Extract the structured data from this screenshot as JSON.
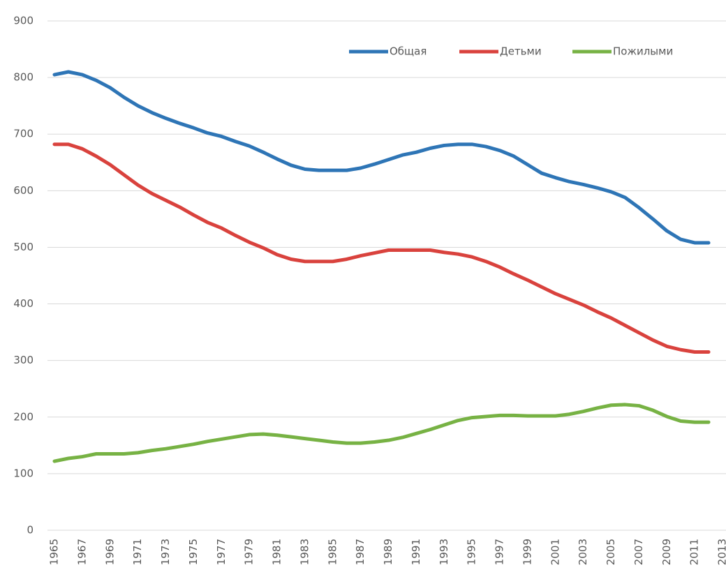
{
  "chart_data": {
    "type": "line",
    "x": [
      1965,
      1966,
      1967,
      1968,
      1969,
      1970,
      1971,
      1972,
      1973,
      1974,
      1975,
      1976,
      1977,
      1978,
      1979,
      1980,
      1981,
      1982,
      1983,
      1984,
      1985,
      1986,
      1987,
      1988,
      1989,
      1990,
      1991,
      1992,
      1993,
      1994,
      1995,
      1996,
      1997,
      1998,
      1999,
      2000,
      2001,
      2002,
      2003,
      2004,
      2005,
      2006,
      2007,
      2008,
      2009,
      2010,
      2011,
      2012
    ],
    "series": [
      {
        "name": "Общая",
        "color": "#2e75b6",
        "values": [
          805,
          810,
          805,
          795,
          782,
          765,
          750,
          738,
          728,
          719,
          711,
          702,
          696,
          687,
          679,
          668,
          656,
          645,
          638,
          636,
          636,
          636,
          640,
          647,
          655,
          663,
          668,
          675,
          680,
          682,
          682,
          678,
          671,
          661,
          646,
          631,
          623,
          616,
          611,
          605,
          598,
          588,
          570,
          550,
          529,
          514,
          508,
          508
        ]
      },
      {
        "name": "Детьми",
        "color": "#d9423d",
        "values": [
          682,
          682,
          674,
          661,
          646,
          628,
          610,
          595,
          583,
          571,
          557,
          544,
          534,
          521,
          509,
          499,
          487,
          479,
          475,
          475,
          475,
          479,
          485,
          490,
          495,
          495,
          495,
          495,
          491,
          488,
          483,
          475,
          465,
          453,
          442,
          430,
          418,
          408,
          398,
          386,
          375,
          362,
          349,
          336,
          325,
          319,
          315,
          315
        ]
      },
      {
        "name": "Пожилыми",
        "color": "#77b244",
        "values": [
          122,
          127,
          130,
          135,
          135,
          135,
          137,
          141,
          144,
          148,
          152,
          157,
          161,
          165,
          169,
          170,
          168,
          165,
          162,
          159,
          156,
          154,
          154,
          156,
          159,
          164,
          171,
          178,
          186,
          194,
          199,
          201,
          203,
          203,
          202,
          202,
          202,
          205,
          210,
          216,
          221,
          222,
          220,
          212,
          201,
          193,
          191,
          191
        ]
      }
    ],
    "xlim": [
      1965,
      2013
    ],
    "xticks": [
      1965,
      1967,
      1969,
      1971,
      1973,
      1975,
      1977,
      1979,
      1981,
      1983,
      1985,
      1987,
      1989,
      1991,
      1993,
      1995,
      1997,
      1999,
      2001,
      2003,
      2005,
      2007,
      2009,
      2011,
      2013
    ],
    "ylim": [
      0,
      900
    ],
    "yticks": [
      0,
      100,
      200,
      300,
      400,
      500,
      600,
      700,
      800,
      900
    ],
    "grid": true,
    "legend": "top-right"
  }
}
